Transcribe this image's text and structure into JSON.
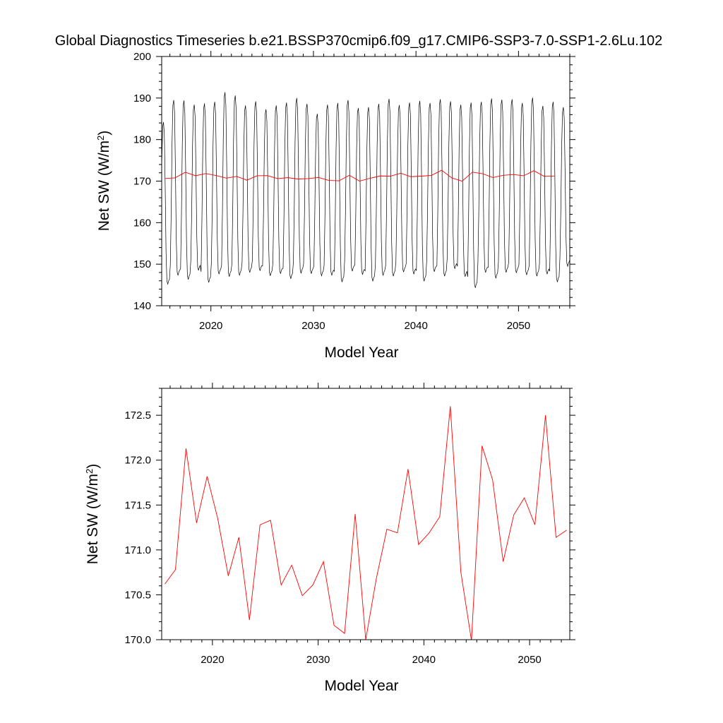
{
  "title": "Global Diagnostics Timeseries b.e21.BSSP370cmip6.f09_g17.CMIP6-SSP3-7.0-SSP1-2.6Lu.102",
  "colors": {
    "monthly": "#000000",
    "annual": "#ff0000",
    "frame": "#000000"
  },
  "chart_data": [
    {
      "type": "line",
      "xlabel": "Model Year",
      "ylabel": "Net SW (W/m2)",
      "xlim": [
        2015.2,
        2055.0
      ],
      "ylim": [
        140,
        200
      ],
      "xticks": [
        2020,
        2030,
        2040,
        2050
      ],
      "yticks": [
        140,
        150,
        160,
        170,
        180,
        190,
        200
      ],
      "grid": false,
      "monthly_series": {
        "start_year": 2015.0,
        "months_per_year": 12,
        "annual_max": [
          184.2,
          189.5,
          189.4,
          188.4,
          188.7,
          189.1,
          191.4,
          190.6,
          188.2,
          189.2,
          187.3,
          188.2,
          188.9,
          190.0,
          188.6,
          186.2,
          188.4,
          188.8,
          189.5,
          187.6,
          187.8,
          188.6,
          189.8,
          188.3,
          188.9,
          189.3,
          188.8,
          189.7,
          189.2,
          188.4,
          188.9,
          189.1,
          189.9,
          189.6,
          189.7,
          188.8,
          190.1,
          188.1,
          189.1,
          187.8,
          188.3
        ],
        "annual_min": [
          145.2,
          147.3,
          146.3,
          148.5,
          145.6,
          147.6,
          147.0,
          147.3,
          148.0,
          148.4,
          147.2,
          147.7,
          146.5,
          147.8,
          147.7,
          147.2,
          147.3,
          145.7,
          148.3,
          147.5,
          145.9,
          147.3,
          147.1,
          148.1,
          147.6,
          145.9,
          148.2,
          147.1,
          148.9,
          147.0,
          144.3,
          148.0,
          146.6,
          148.0,
          147.9,
          147.4,
          147.1,
          147.6,
          145.7,
          149.5,
          149.5
        ]
      },
      "series": [
        {
          "x": [
            2015.5,
            2016.5,
            2017.5,
            2018.5,
            2019.5,
            2020.5,
            2021.5,
            2022.5,
            2023.5,
            2024.5,
            2025.5,
            2026.5,
            2027.5,
            2028.5,
            2029.5,
            2030.5,
            2031.5,
            2032.5,
            2033.5,
            2034.5,
            2035.5,
            2036.5,
            2037.5,
            2038.5,
            2039.5,
            2040.5,
            2041.5,
            2042.5,
            2043.5,
            2044.5,
            2045.5,
            2046.5,
            2047.5,
            2048.5,
            2049.5,
            2050.5,
            2051.5,
            2052.5,
            2053.5
          ],
          "values": [
            170.62,
            170.78,
            172.13,
            171.3,
            171.82,
            171.35,
            170.71,
            171.14,
            170.22,
            171.28,
            171.33,
            170.61,
            170.83,
            170.49,
            170.61,
            170.87,
            170.16,
            170.07,
            171.4,
            170.0,
            170.68,
            171.23,
            171.19,
            171.9,
            171.06,
            171.19,
            171.37,
            172.6,
            170.75,
            169.99,
            172.16,
            171.78,
            170.87,
            171.39,
            171.58,
            171.28,
            172.5,
            171.14,
            171.22
          ]
        }
      ]
    },
    {
      "type": "line",
      "xlabel": "Model Year",
      "ylabel": "Net SW (W/m2)",
      "xlim": [
        2015.2,
        2053.8
      ],
      "ylim": [
        170.0,
        172.8
      ],
      "xticks": [
        2020,
        2030,
        2040,
        2050
      ],
      "yticks": [
        170.0,
        170.5,
        171.0,
        171.5,
        172.0,
        172.5
      ],
      "ytick_labels": [
        "170.0",
        "170.5",
        "171.0",
        "171.5",
        "172.0",
        "172.5"
      ],
      "grid": false,
      "series": [
        {
          "x": [
            2015.5,
            2016.5,
            2017.5,
            2018.5,
            2019.5,
            2020.5,
            2021.5,
            2022.5,
            2023.5,
            2024.5,
            2025.5,
            2026.5,
            2027.5,
            2028.5,
            2029.5,
            2030.5,
            2031.5,
            2032.5,
            2033.5,
            2034.5,
            2035.5,
            2036.5,
            2037.5,
            2038.5,
            2039.5,
            2040.5,
            2041.5,
            2042.5,
            2043.5,
            2044.5,
            2045.5,
            2046.5,
            2047.5,
            2048.5,
            2049.5,
            2050.5,
            2051.5,
            2052.5,
            2053.5
          ],
          "values": [
            170.62,
            170.78,
            172.13,
            171.3,
            171.82,
            171.35,
            170.71,
            171.14,
            170.22,
            171.28,
            171.33,
            170.61,
            170.83,
            170.49,
            170.61,
            170.87,
            170.16,
            170.07,
            171.4,
            170.0,
            170.68,
            171.23,
            171.19,
            171.9,
            171.06,
            171.19,
            171.37,
            172.6,
            170.75,
            169.99,
            172.16,
            171.78,
            170.87,
            171.39,
            171.58,
            171.28,
            172.5,
            171.14,
            171.22
          ]
        }
      ]
    }
  ]
}
